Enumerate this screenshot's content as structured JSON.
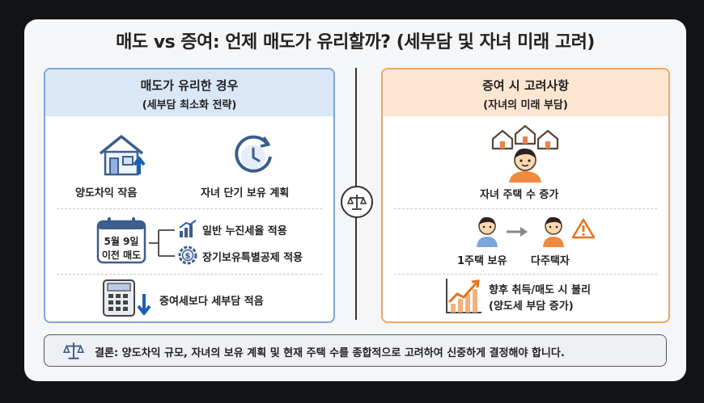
{
  "title": "매도 vs 증여: 언제 매도가 유리할까? (세부담 및 자녀 미래 고려)",
  "left_panel": {
    "title": "매도가 유리한 경우",
    "subtitle": "(세부담 최소화 전략)",
    "item_gain": "양도차익 작음",
    "item_short_hold": "자녀 단기 보유 계획",
    "calendar_line1": "5월 9일",
    "calendar_line2": "이전 매도",
    "branch_1": "일반 누진세율 적용",
    "branch_2": "장기보유특별공제 적용",
    "item_tax_less": "증여세보다 세부담 적음"
  },
  "right_panel": {
    "title": "증여 시 고려사항",
    "subtitle": "(자녀의 미래 부담)",
    "item_house_increase": "자녀 주택 수 증가",
    "one_house": "1주택 보유",
    "multi_house": "다주택자",
    "future_line1": "향후 취득/매도 시 불리",
    "future_line2": "(양도세 부담 증가)"
  },
  "conclusion": "결론: 양도차익 규모, 자녀의 보유 계획 및 현재 주택 수를 종합적으로 고려하여 신중하게 결정해야 합니다.",
  "colors": {
    "left_accent": "#7ba6dc",
    "right_accent": "#f0a664",
    "warning": "#e6741f"
  }
}
